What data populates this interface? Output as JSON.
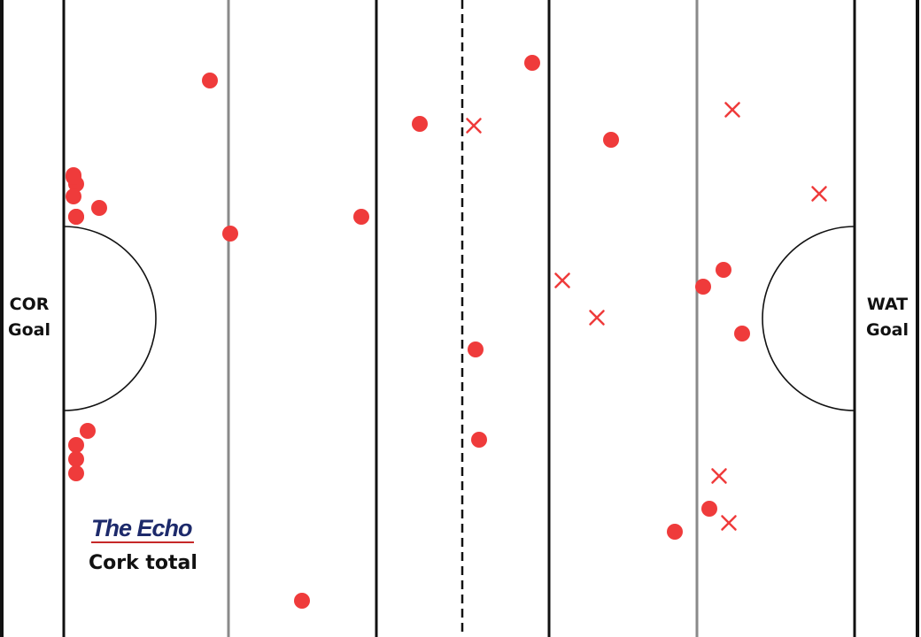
{
  "pitch": {
    "left_goal_label": [
      "COR",
      "Goal"
    ],
    "right_goal_label": [
      "WAT",
      "Goal"
    ]
  },
  "branding": {
    "logo_text": "The Echo",
    "caption": "Cork total"
  },
  "colors": {
    "marker": "#ef3b3b",
    "line_dark": "#111111",
    "line_grey": "#8a8a8a"
  },
  "shots": [
    {
      "result": "score"
    },
    {
      "result": "score"
    },
    {
      "result": "score"
    },
    {
      "result": "score"
    },
    {
      "result": "score"
    },
    {
      "result": "score"
    },
    {
      "result": "score"
    },
    {
      "result": "score"
    },
    {
      "result": "score"
    },
    {
      "result": "score"
    },
    {
      "result": "score"
    },
    {
      "result": "score"
    },
    {
      "result": "score"
    },
    {
      "result": "score"
    },
    {
      "result": "score"
    },
    {
      "result": "score"
    },
    {
      "result": "score"
    },
    {
      "result": "score"
    },
    {
      "result": "score"
    },
    {
      "result": "score"
    },
    {
      "result": "score"
    },
    {
      "result": "score"
    },
    {
      "result": "score"
    },
    {
      "result": "score"
    },
    {
      "result": "score"
    },
    {
      "result": "miss"
    },
    {
      "result": "miss"
    },
    {
      "result": "miss"
    },
    {
      "result": "miss"
    },
    {
      "result": "miss"
    },
    {
      "result": "miss"
    },
    {
      "result": "miss"
    }
  ]
}
